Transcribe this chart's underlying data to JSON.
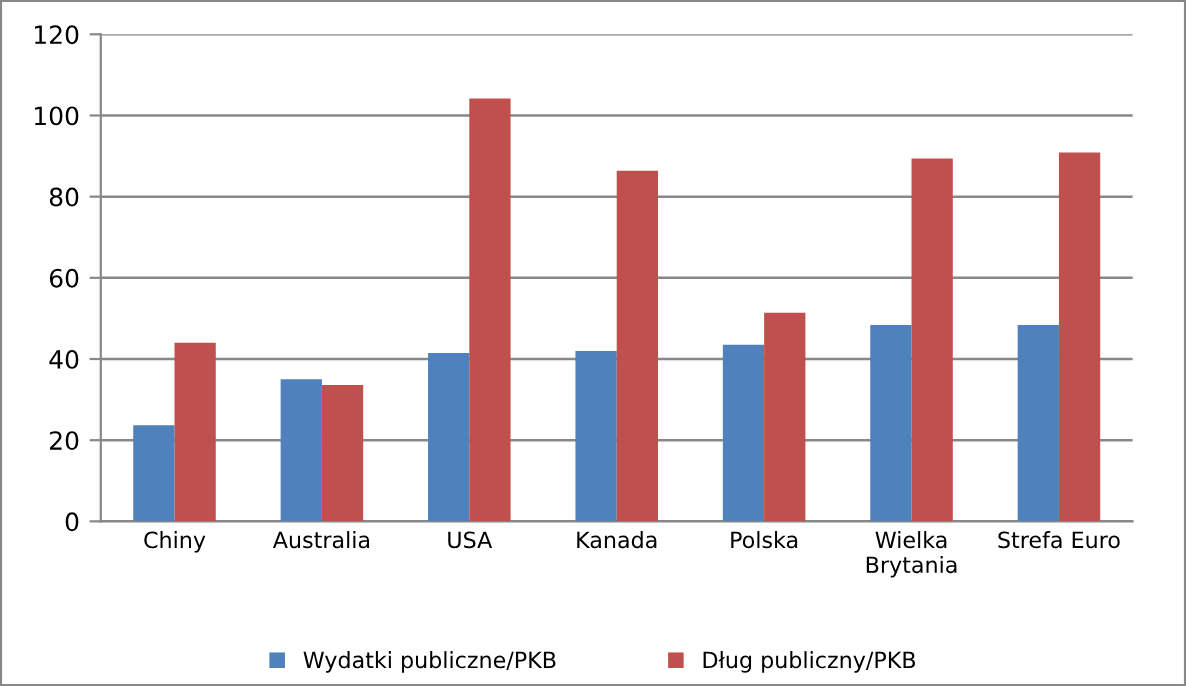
{
  "chart_data": {
    "type": "bar",
    "categories": [
      "Chiny",
      "Australia",
      "USA",
      "Kanada",
      "Polska",
      "Wielka\nBrytania",
      "Strefa Euro"
    ],
    "series": [
      {
        "name": "Wydatki publiczne/PKB",
        "color": "#4f81bd",
        "values": [
          23.7,
          35,
          41.5,
          42,
          43.5,
          48.4,
          48.4
        ]
      },
      {
        "name": "Dług publiczny/PKB",
        "color": "#c0504d",
        "values": [
          44,
          33.6,
          104.2,
          86.4,
          51.4,
          89.4,
          90.9
        ]
      }
    ],
    "ylim": [
      0,
      120
    ],
    "yticks": [
      0,
      20,
      40,
      60,
      80,
      100,
      120
    ],
    "grid": "y",
    "legend": "bottom"
  }
}
